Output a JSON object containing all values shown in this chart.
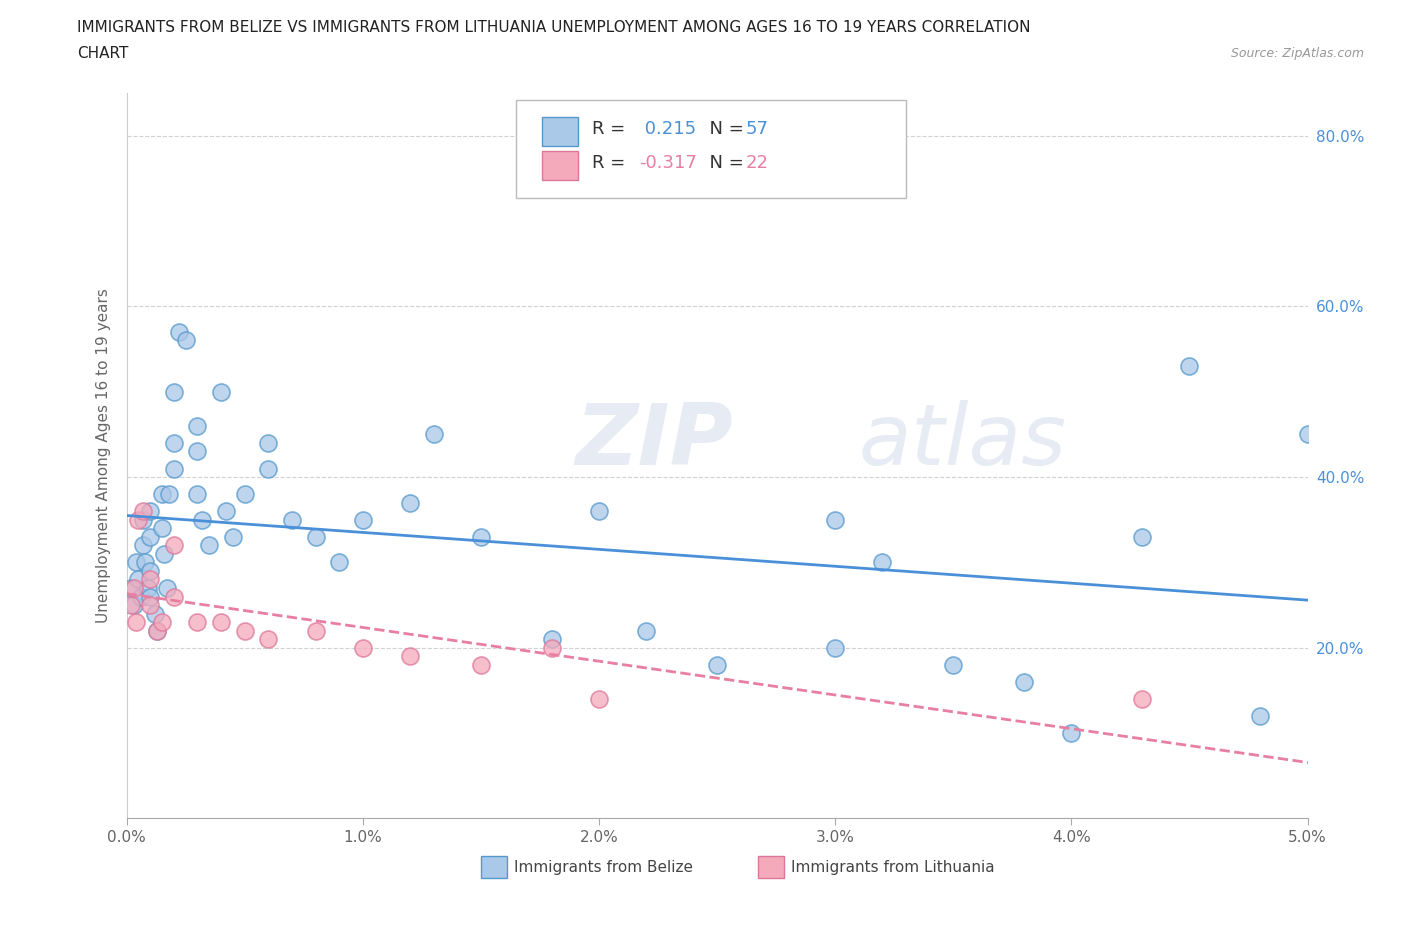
{
  "title_line1": "IMMIGRANTS FROM BELIZE VS IMMIGRANTS FROM LITHUANIA UNEMPLOYMENT AMONG AGES 16 TO 19 YEARS CORRELATION",
  "title_line2": "CHART",
  "source_text": "Source: ZipAtlas.com",
  "ylabel": "Unemployment Among Ages 16 to 19 years",
  "xlim": [
    0.0,
    0.05
  ],
  "ylim": [
    0.0,
    0.85
  ],
  "xtick_vals": [
    0.0,
    0.01,
    0.02,
    0.03,
    0.04,
    0.05
  ],
  "xticklabels": [
    "0.0%",
    "1.0%",
    "2.0%",
    "3.0%",
    "4.0%",
    "5.0%"
  ],
  "ytick_vals": [
    0.0,
    0.2,
    0.4,
    0.6,
    0.8
  ],
  "yticklabels": [
    "",
    "20.0%",
    "40.0%",
    "60.0%",
    "80.0%"
  ],
  "belize_color": "#aac8e8",
  "lithuania_color": "#f5aabb",
  "belize_edge_color": "#5599cc",
  "lithuania_edge_color": "#dd7799",
  "belize_line_color": "#4a90d9",
  "lithuania_line_color": "#e87fa0",
  "R_belize": 0.215,
  "N_belize": 57,
  "R_lithuania": -0.317,
  "N_lithuania": 22,
  "watermark_left": "ZIP",
  "watermark_right": "atlas",
  "belize_x": [
    0.0002,
    0.0003,
    0.0004,
    0.0005,
    0.0006,
    0.0007,
    0.0007,
    0.0008,
    0.0009,
    0.001,
    0.001,
    0.001,
    0.001,
    0.0012,
    0.0013,
    0.0015,
    0.0015,
    0.0016,
    0.0017,
    0.0018,
    0.002,
    0.002,
    0.002,
    0.0022,
    0.0025,
    0.003,
    0.003,
    0.003,
    0.0032,
    0.0035,
    0.004,
    0.0042,
    0.0045,
    0.005,
    0.006,
    0.006,
    0.007,
    0.008,
    0.009,
    0.01,
    0.012,
    0.013,
    0.015,
    0.018,
    0.02,
    0.022,
    0.025,
    0.03,
    0.03,
    0.032,
    0.035,
    0.038,
    0.04,
    0.043,
    0.045,
    0.048,
    0.05
  ],
  "belize_y": [
    0.27,
    0.25,
    0.3,
    0.28,
    0.26,
    0.32,
    0.35,
    0.3,
    0.27,
    0.36,
    0.33,
    0.29,
    0.26,
    0.24,
    0.22,
    0.38,
    0.34,
    0.31,
    0.27,
    0.38,
    0.44,
    0.41,
    0.5,
    0.57,
    0.56,
    0.46,
    0.43,
    0.38,
    0.35,
    0.32,
    0.5,
    0.36,
    0.33,
    0.38,
    0.44,
    0.41,
    0.35,
    0.33,
    0.3,
    0.35,
    0.37,
    0.45,
    0.33,
    0.21,
    0.36,
    0.22,
    0.18,
    0.2,
    0.35,
    0.3,
    0.18,
    0.16,
    0.1,
    0.33,
    0.53,
    0.12,
    0.45
  ],
  "lithuania_x": [
    0.0002,
    0.0003,
    0.0004,
    0.0005,
    0.0007,
    0.001,
    0.001,
    0.0013,
    0.0015,
    0.002,
    0.002,
    0.003,
    0.004,
    0.005,
    0.006,
    0.008,
    0.01,
    0.012,
    0.015,
    0.018,
    0.02,
    0.043
  ],
  "lithuania_y": [
    0.25,
    0.27,
    0.23,
    0.35,
    0.36,
    0.28,
    0.25,
    0.22,
    0.23,
    0.32,
    0.26,
    0.23,
    0.23,
    0.22,
    0.21,
    0.22,
    0.2,
    0.19,
    0.18,
    0.2,
    0.14,
    0.14
  ],
  "background_color": "#ffffff"
}
